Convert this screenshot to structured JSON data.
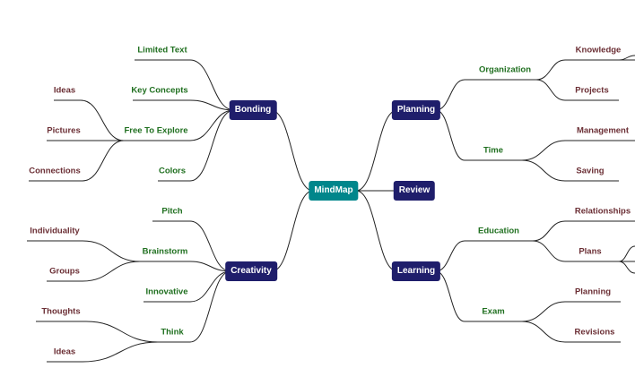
{
  "root": "MindMap",
  "left": {
    "bonding": {
      "label": "Bonding",
      "children": [
        "Limited Text",
        "Key Concepts",
        "Free To Explore",
        "Colors"
      ],
      "free_to_explore_children": [
        "Ideas",
        "Pictures",
        "Connections"
      ]
    },
    "creativity": {
      "label": "Creativity",
      "children": [
        "Pitch",
        "Brainstorm",
        "Innovative",
        "Think"
      ],
      "brainstorm_children": [
        "Individuality",
        "Groups"
      ],
      "think_children": [
        "Thoughts",
        "Ideas"
      ]
    }
  },
  "right": {
    "planning": {
      "label": "Planning",
      "children": [
        "Organization",
        "Time"
      ],
      "organization_children": [
        "Knowledge",
        "Projects"
      ],
      "time_children": [
        "Management",
        "Saving"
      ]
    },
    "review": {
      "label": "Review"
    },
    "learning": {
      "label": "Learning",
      "children": [
        "Education",
        "Exam"
      ],
      "education_children": [
        "Relationships",
        "Plans"
      ],
      "exam_children": [
        "Planning",
        "Revisions"
      ]
    }
  },
  "colors": {
    "root": "#00868b",
    "primary": "#1f1e6b",
    "secondary_text": "#1f6f1f",
    "tertiary_text": "#6b2f35",
    "lines": "#222222"
  }
}
